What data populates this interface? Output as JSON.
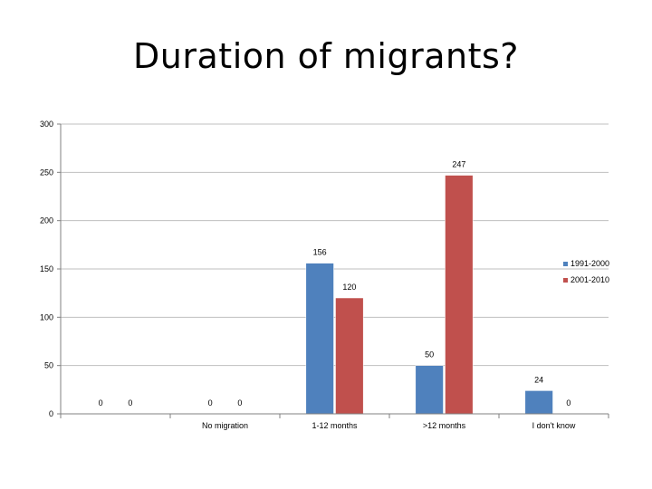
{
  "chart_data": {
    "type": "bar",
    "title": "Duration of migrants?",
    "categories": [
      "",
      "No migration",
      "1-12 months",
      ">12 months",
      "I don't know"
    ],
    "series": [
      {
        "name": "1991-2000",
        "values": [
          0,
          0,
          156,
          50,
          24
        ],
        "color": "#4f81bd"
      },
      {
        "name": "2001-2010",
        "values": [
          0,
          0,
          120,
          247,
          0
        ],
        "color": "#c0504d"
      }
    ],
    "ylim": [
      0,
      300
    ],
    "yticks": [
      0,
      50,
      100,
      150,
      200,
      250,
      300
    ],
    "grid": true,
    "legend": "right"
  }
}
